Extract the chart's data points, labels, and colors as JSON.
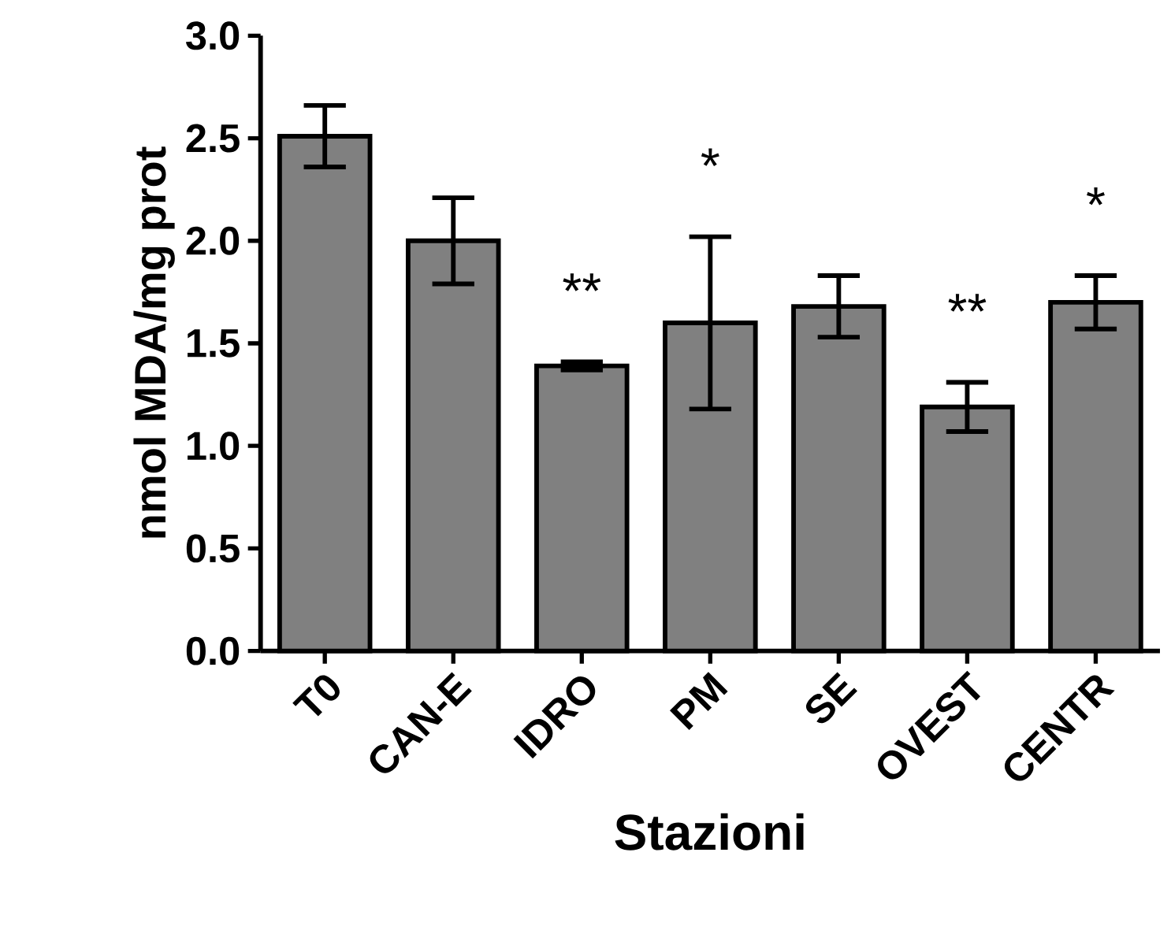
{
  "chart_data": {
    "type": "bar",
    "xlabel": "Stazioni",
    "ylabel": "nmol MDA/mg prot",
    "categories": [
      "T0",
      "CAN-E",
      "IDRO",
      "PM",
      "SE",
      "OVEST",
      "CENTR"
    ],
    "values": [
      2.51,
      2.0,
      1.39,
      1.6,
      1.68,
      1.19,
      1.7
    ],
    "errors": [
      0.15,
      0.21,
      0.02,
      0.42,
      0.15,
      0.12,
      0.13
    ],
    "color": "#808080",
    "ylim": [
      0,
      3
    ],
    "yticks": [
      {
        "value": 0,
        "label": "0.0"
      },
      0.5,
      {
        "value": 1,
        "label": "1.0"
      },
      1.5,
      {
        "value": 2,
        "label": "2.0"
      },
      2.5,
      {
        "value": 3,
        "label": "3.0"
      }
    ],
    "grid": false,
    "value_labels": [
      null,
      null,
      "**",
      "*",
      null,
      "**",
      "*"
    ]
  }
}
